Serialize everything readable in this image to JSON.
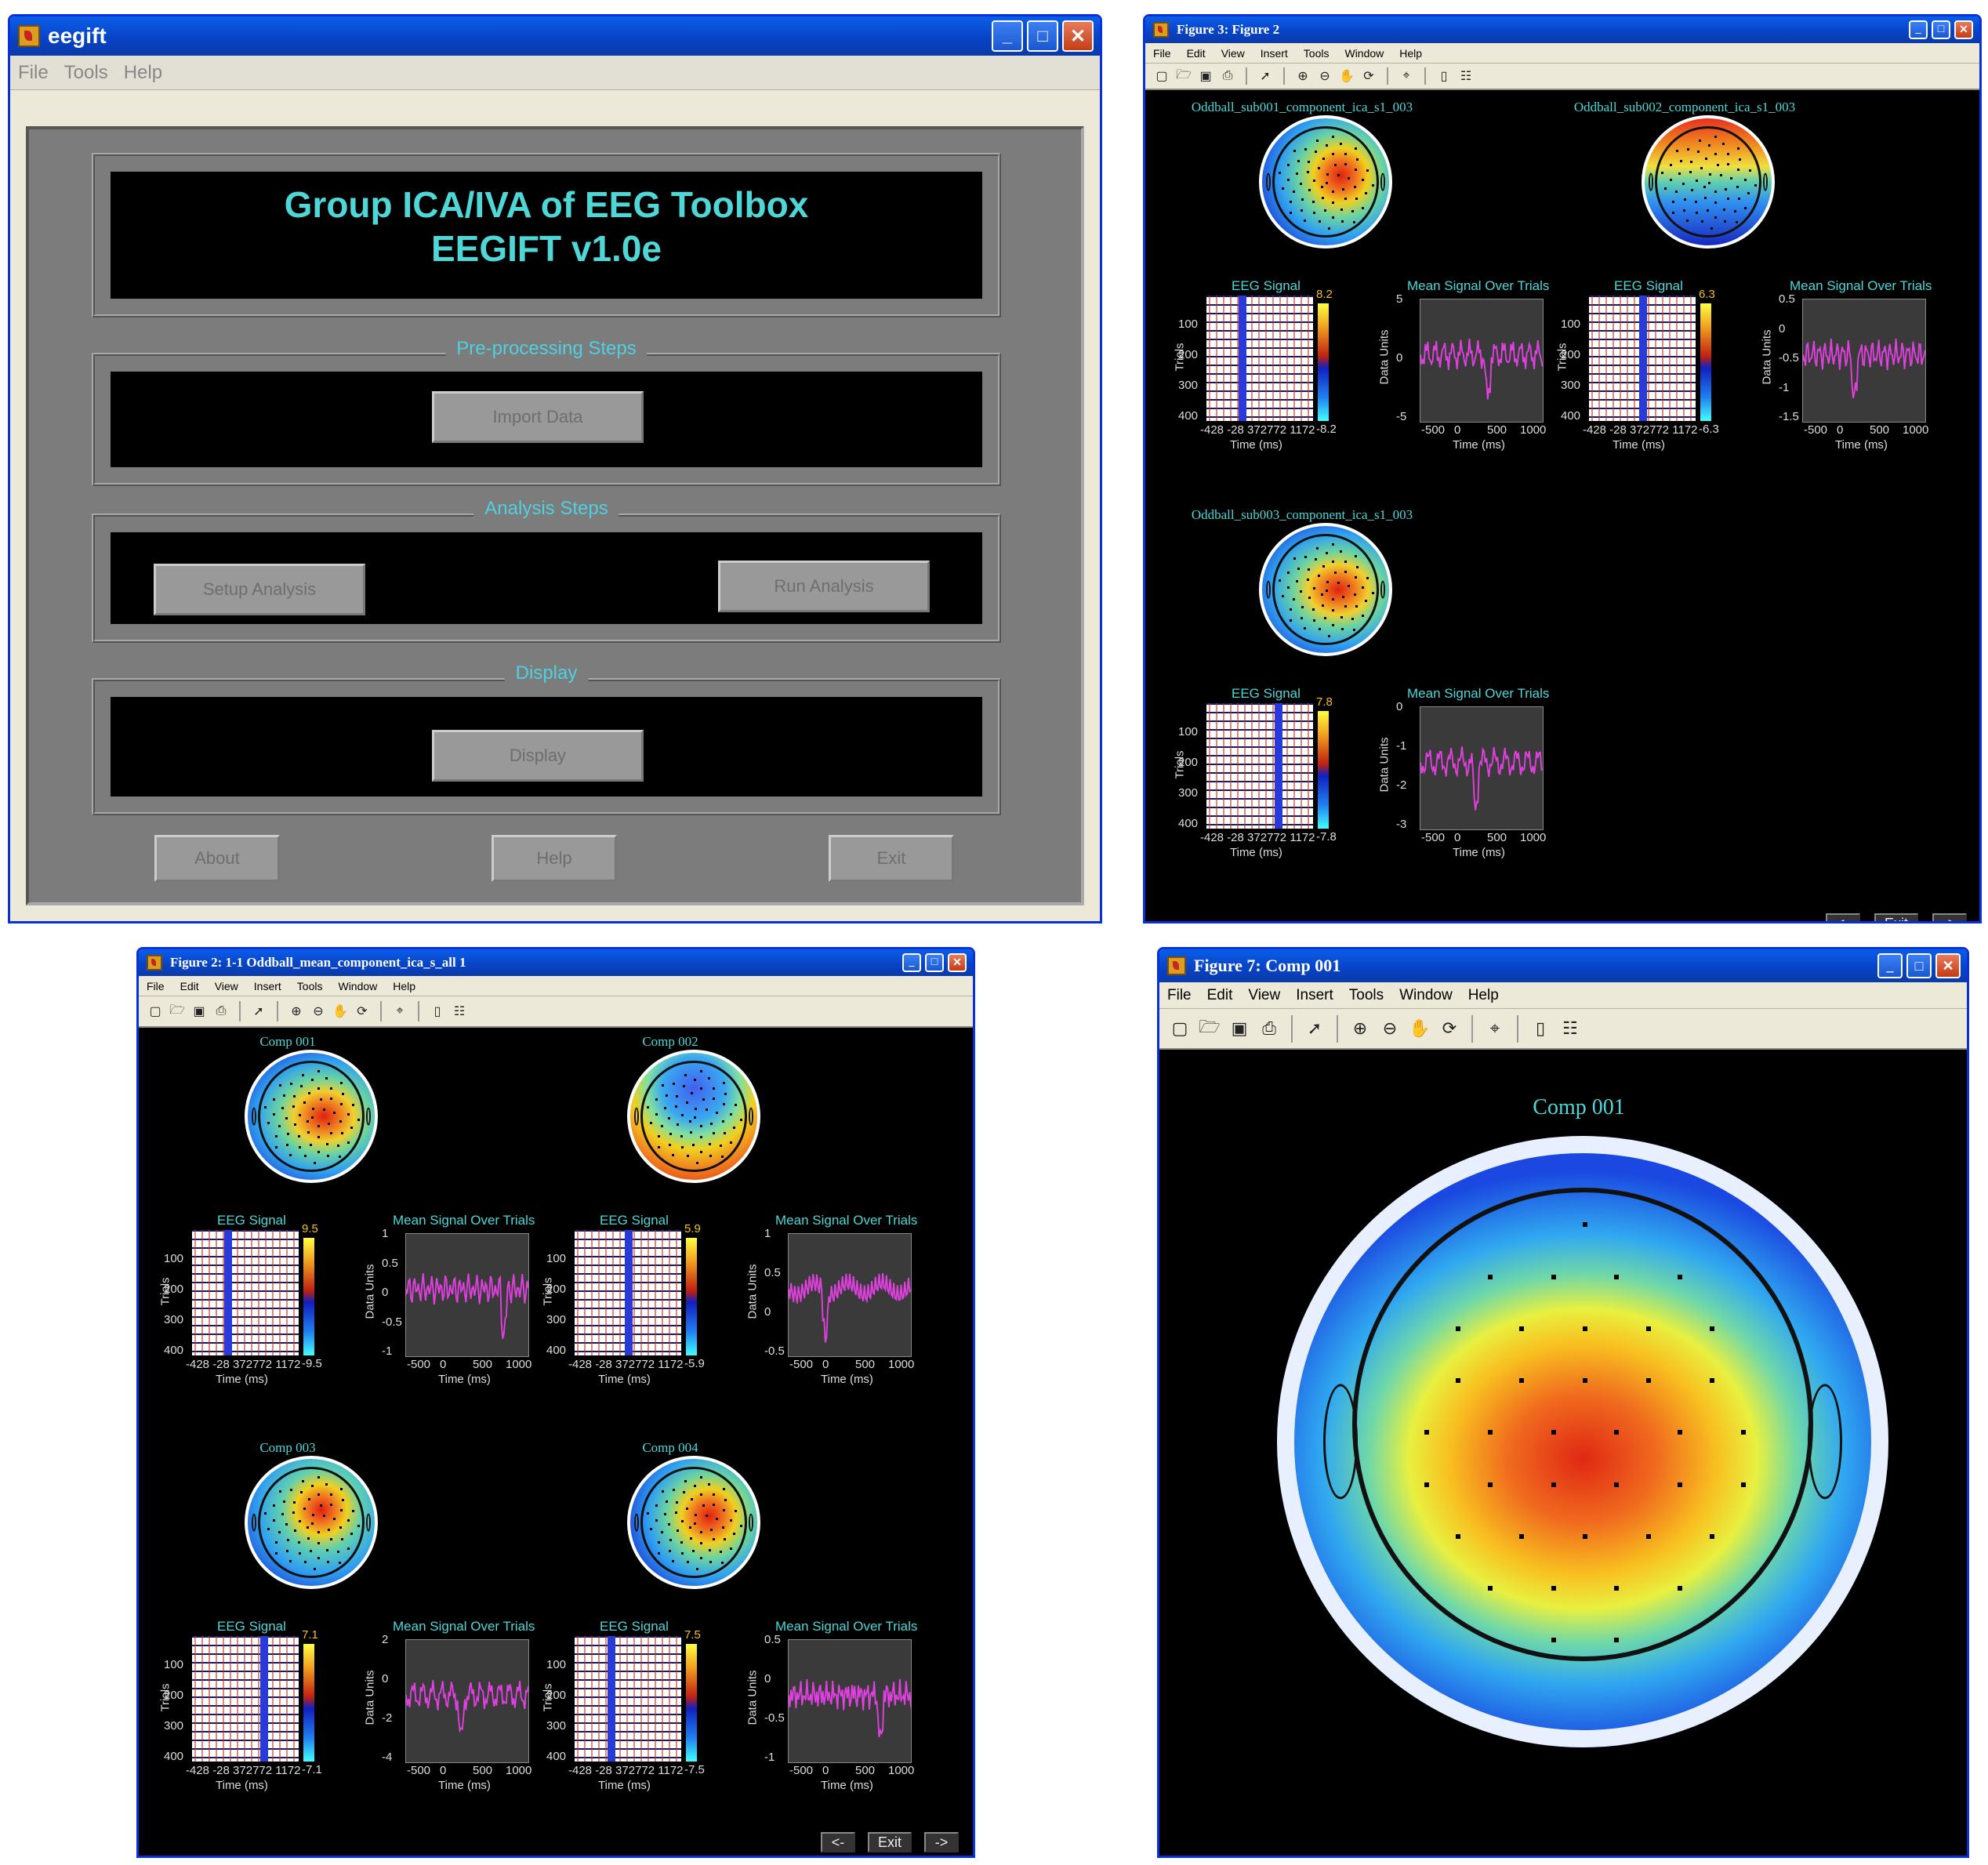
{
  "eegift": {
    "title": "eegift",
    "menu": [
      "File",
      "Tools",
      "Help"
    ],
    "banner_line1": "Group ICA/IVA of EEG Toolbox",
    "banner_line2": "EEGIFT v1.0e",
    "preprocessing_label": "Pre-processing Steps",
    "import_data": "Import Data",
    "analysis_label": "Analysis Steps",
    "setup_analysis": "Setup Analysis",
    "run_analysis": "Run Analysis",
    "display_label": "Display",
    "display_button": "Display",
    "about": "About",
    "help": "Help",
    "exit": "Exit"
  },
  "fig3": {
    "title": "Figure 3: Figure  2",
    "menu": [
      "File",
      "Edit",
      "View",
      "Insert",
      "Tools",
      "Window",
      "Help"
    ],
    "panels": [
      {
        "title": "Oddball_sub001_component_ica_s1_003",
        "cmax": "8.2",
        "cmin": "-8.2",
        "yticks": [
          "5",
          "0",
          "-5"
        ]
      },
      {
        "title": "Oddball_sub002_component_ica_s1_003",
        "cmax": "6.3",
        "cmin": "-6.3",
        "yticks": [
          "0.5",
          "0",
          "-0.5",
          "-1",
          "-1.5"
        ]
      },
      {
        "title": "Oddball_sub003_component_ica_s1_003",
        "cmax": "7.8",
        "cmin": "-7.8",
        "yticks": [
          "0",
          "-1",
          "-2",
          "-3"
        ]
      }
    ],
    "nav": {
      "prev": "<-",
      "exit": "Exit",
      "next": "->"
    }
  },
  "fig2": {
    "title": "Figure 2: 1-1 Oddball_mean_component_ica_s_all 1",
    "menu": [
      "File",
      "Edit",
      "View",
      "Insert",
      "Tools",
      "Window",
      "Help"
    ],
    "panels": [
      {
        "title": "Comp 001",
        "cmax": "9.5",
        "cmin": "-9.5",
        "yticks": [
          "1",
          "0.5",
          "0",
          "-0.5",
          "-1"
        ]
      },
      {
        "title": "Comp 002",
        "cmax": "5.9",
        "cmin": "-5.9",
        "yticks": [
          "1",
          "0.5",
          "0",
          "-0.5"
        ]
      },
      {
        "title": "Comp 003",
        "cmax": "7.1",
        "cmin": "-7.1",
        "yticks": [
          "2",
          "0",
          "-2",
          "-4"
        ]
      },
      {
        "title": "Comp 004",
        "cmax": "7.5",
        "cmin": "-7.5",
        "yticks": [
          "0.5",
          "0",
          "-0.5",
          "-1"
        ]
      }
    ],
    "nav": {
      "prev": "<-",
      "exit": "Exit",
      "next": "->"
    }
  },
  "fig7": {
    "title": "Figure 7: Comp 001",
    "menu": [
      "File",
      "Edit",
      "View",
      "Insert",
      "Tools",
      "Window",
      "Help"
    ],
    "plot_title": "Comp 001"
  },
  "common": {
    "eeg_title": "EEG Signal",
    "mean_title": "Mean Signal Over Trials",
    "trials_label": "Trials",
    "data_units": "Data Units",
    "time_label": "Time (ms)",
    "trial_ticks": [
      "100",
      "200",
      "300",
      "400"
    ],
    "eeg_xticks": "-428 -28 372772 1172",
    "mean_xticks": [
      "-500",
      "0",
      "500",
      "1000"
    ]
  },
  "colors": {
    "cyan": "#4fd6d6",
    "magenta": "#e040e0",
    "xp_blue": "#0a5ee8"
  }
}
